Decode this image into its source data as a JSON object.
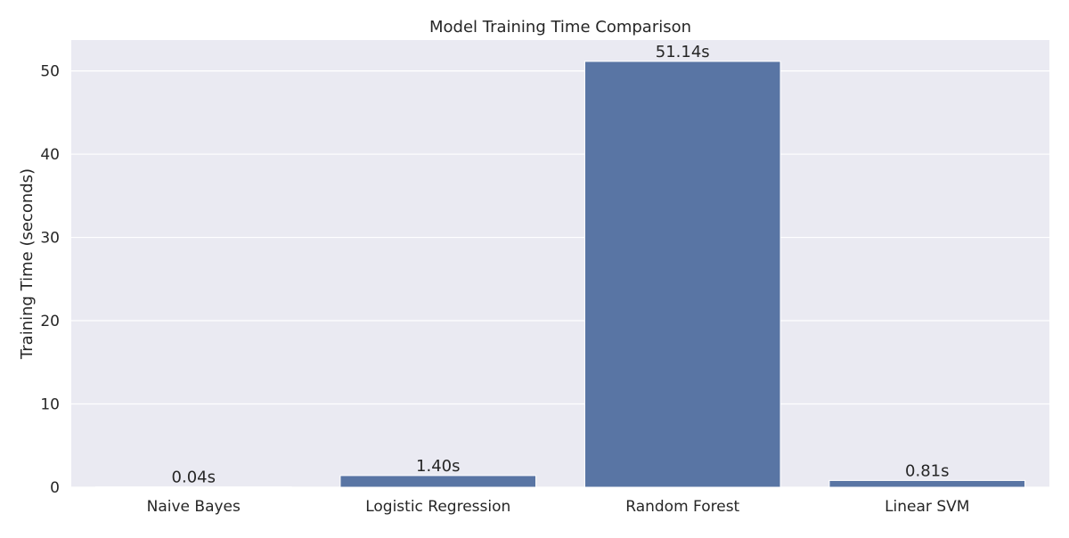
{
  "chart_data": {
    "type": "bar",
    "title": "Model Training Time Comparison",
    "xlabel": "",
    "ylabel": "Training Time (seconds)",
    "categories": [
      "Naive Bayes",
      "Logistic Regression",
      "Random Forest",
      "Linear SVM"
    ],
    "values": [
      0.04,
      1.4,
      51.14,
      0.81
    ],
    "value_labels": [
      "0.04s",
      "1.40s",
      "51.14s",
      "0.81s"
    ],
    "ylim": [
      0,
      53.7
    ],
    "yticks": [
      0,
      10,
      20,
      30,
      40,
      50
    ],
    "grid": true,
    "colors": {
      "bar": "#5975a4",
      "background": "#eaeaf2",
      "grid": "#ffffff"
    }
  }
}
